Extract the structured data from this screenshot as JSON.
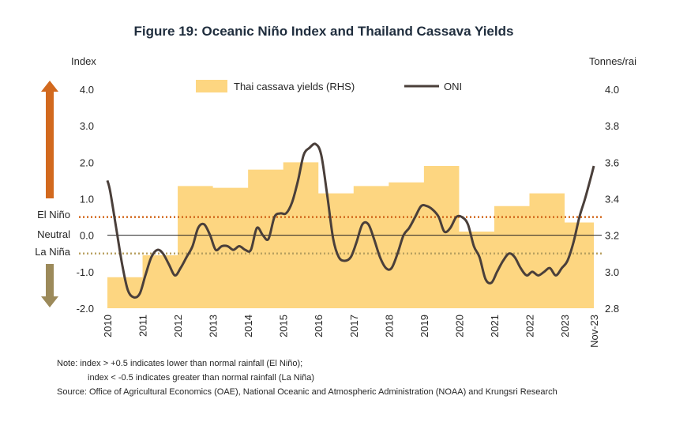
{
  "chart_data": {
    "type": "line",
    "title": "Figure 19: Oceanic Niño Index and Thailand Cassava Yields",
    "ylabel_left": "Index",
    "ylabel_right": "Tonnes/rai",
    "ylim_left": [
      -2.0,
      4.0
    ],
    "ylim_right": [
      2.8,
      4.0
    ],
    "yticks_left": [
      "4.0",
      "3.0",
      "2.0",
      "1.0",
      "0.0",
      "-1.0",
      "-2.0"
    ],
    "yticks_right": [
      "4.0",
      "3.8",
      "3.6",
      "3.4",
      "3.2",
      "3.0",
      "2.8"
    ],
    "x_tick_labels": [
      "2010",
      "2011",
      "2012",
      "2013",
      "2014",
      "2015",
      "2016",
      "2017",
      "2018",
      "2019",
      "2020",
      "2021",
      "2022",
      "2023",
      "Nov-23"
    ],
    "thresholds": [
      {
        "value": 0.5,
        "label": "El Niño",
        "color": "#d2691e"
      },
      {
        "value": -0.5,
        "label": "La Niña",
        "color": "#b8a060"
      }
    ],
    "neutral_label": "Neutral",
    "series": [
      {
        "name": "Thai cassava yields (RHS)",
        "kind": "area",
        "axis": "right",
        "color": "#fdd681",
        "x": [
          2010,
          2011,
          2012,
          2013,
          2014,
          2015,
          2016,
          2017,
          2018,
          2019,
          2020,
          2021,
          2022,
          2023
        ],
        "values": [
          2.97,
          3.09,
          3.47,
          3.46,
          3.56,
          3.6,
          3.43,
          3.47,
          3.49,
          3.58,
          3.22,
          3.36,
          3.43,
          3.27
        ]
      },
      {
        "name": "ONI",
        "kind": "line",
        "axis": "left",
        "color": "#4a3f3a",
        "x": [
          2010.0,
          2010.08,
          2010.25,
          2010.42,
          2010.58,
          2010.75,
          2010.92,
          2011.08,
          2011.25,
          2011.42,
          2011.58,
          2011.75,
          2011.92,
          2012.08,
          2012.25,
          2012.42,
          2012.58,
          2012.75,
          2012.92,
          2013.08,
          2013.25,
          2013.42,
          2013.58,
          2013.75,
          2013.92,
          2014.08,
          2014.25,
          2014.42,
          2014.58,
          2014.75,
          2014.92,
          2015.08,
          2015.25,
          2015.42,
          2015.58,
          2015.75,
          2015.92,
          2016.08,
          2016.25,
          2016.42,
          2016.58,
          2016.75,
          2016.92,
          2017.08,
          2017.25,
          2017.42,
          2017.58,
          2017.75,
          2017.92,
          2018.08,
          2018.25,
          2018.42,
          2018.58,
          2018.75,
          2018.92,
          2019.08,
          2019.25,
          2019.42,
          2019.58,
          2019.75,
          2019.92,
          2020.08,
          2020.25,
          2020.42,
          2020.58,
          2020.75,
          2020.92,
          2021.08,
          2021.25,
          2021.42,
          2021.58,
          2021.75,
          2021.92,
          2022.08,
          2022.25,
          2022.42,
          2022.58,
          2022.75,
          2022.92,
          2023.08,
          2023.25,
          2023.42,
          2023.58,
          2023.75,
          2023.83
        ],
        "values": [
          1.5,
          1.2,
          0.2,
          -0.8,
          -1.5,
          -1.7,
          -1.6,
          -1.1,
          -0.6,
          -0.4,
          -0.5,
          -0.8,
          -1.1,
          -0.9,
          -0.6,
          -0.3,
          0.2,
          0.3,
          0.0,
          -0.4,
          -0.3,
          -0.3,
          -0.4,
          -0.3,
          -0.4,
          -0.4,
          0.2,
          0.0,
          -0.1,
          0.5,
          0.6,
          0.6,
          0.9,
          1.5,
          2.2,
          2.4,
          2.5,
          2.2,
          1.1,
          -0.1,
          -0.6,
          -0.7,
          -0.6,
          -0.2,
          0.3,
          0.3,
          -0.1,
          -0.6,
          -0.9,
          -0.9,
          -0.5,
          0.0,
          0.2,
          0.5,
          0.8,
          0.8,
          0.7,
          0.5,
          0.1,
          0.2,
          0.5,
          0.5,
          0.3,
          -0.3,
          -0.6,
          -1.2,
          -1.3,
          -1.0,
          -0.7,
          -0.5,
          -0.6,
          -0.9,
          -1.1,
          -1.0,
          -1.1,
          -1.0,
          -0.9,
          -1.1,
          -0.9,
          -0.7,
          -0.2,
          0.5,
          1.0,
          1.6,
          1.9
        ]
      }
    ],
    "legend_position": "top",
    "grid": false
  },
  "notes": {
    "line1": "Note:  index >  +0.5 indicates lower than normal rainfall (El Niño);",
    "line2": "index < -0.5 indicates greater than normal rainfall (La Niña)",
    "source": "Source: Office of Agricultural Economics (OAE), National Oceanic and Atmospheric Administration (NOAA) and Krungsri Research"
  },
  "colors": {
    "arrow_up": "#d2691e",
    "arrow_down": "#9c8a5a",
    "zero_line": "#222222"
  }
}
